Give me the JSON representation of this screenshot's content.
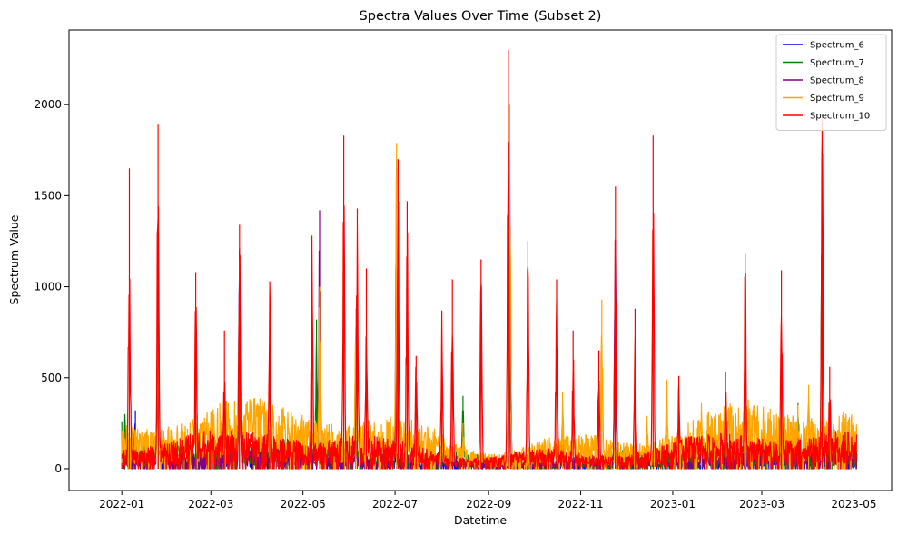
{
  "chart_data": {
    "type": "line",
    "title": "Spectra Values Over Time (Subset 2)",
    "xlabel": "Datetime",
    "ylabel": "Spectrum Value",
    "xlim": [
      "2021-11-27",
      "2023-05-26"
    ],
    "ylim": [
      -120,
      2410
    ],
    "x_ticks": [
      "2022-01",
      "2022-03",
      "2022-05",
      "2022-07",
      "2022-09",
      "2022-11",
      "2023-01",
      "2023-03",
      "2023-05"
    ],
    "y_ticks": [
      0,
      500,
      1000,
      1500,
      2000
    ],
    "grid": false,
    "legend_position": "top-right",
    "series": [
      {
        "name": "Spectrum_6",
        "color": "#0000ff",
        "points": [
          [
            "2022-01-01",
            40
          ],
          [
            "2022-01-10",
            320
          ],
          [
            "2022-01-25",
            1290
          ],
          [
            "2022-02-15",
            90
          ],
          [
            "2022-03-20",
            1200
          ],
          [
            "2022-04-15",
            110
          ],
          [
            "2022-05-12",
            160
          ],
          [
            "2022-06-05",
            230
          ],
          [
            "2022-07-02",
            130
          ],
          [
            "2022-08-15",
            40
          ],
          [
            "2022-09-15",
            1400
          ],
          [
            "2022-10-20",
            70
          ],
          [
            "2022-11-24",
            1260
          ],
          [
            "2022-12-15",
            60
          ],
          [
            "2023-01-15",
            20
          ],
          [
            "2023-03-01",
            30
          ],
          [
            "2023-04-10",
            120
          ],
          [
            "2023-05-01",
            20
          ]
        ]
      },
      {
        "name": "Spectrum_7",
        "color": "#008000",
        "points": [
          [
            "2022-01-01",
            260
          ],
          [
            "2022-01-03",
            300
          ],
          [
            "2022-01-25",
            1260
          ],
          [
            "2022-02-10",
            120
          ],
          [
            "2022-03-20",
            1180
          ],
          [
            "2022-04-15",
            170
          ],
          [
            "2022-05-10",
            820
          ],
          [
            "2022-06-05",
            780
          ],
          [
            "2022-07-02",
            1700
          ],
          [
            "2022-08-15",
            400
          ],
          [
            "2022-09-15",
            1500
          ],
          [
            "2022-10-20",
            180
          ],
          [
            "2022-11-24",
            1220
          ],
          [
            "2022-12-15",
            110
          ],
          [
            "2023-01-20",
            60
          ],
          [
            "2023-03-25",
            360
          ],
          [
            "2023-04-10",
            1900
          ],
          [
            "2023-05-01",
            50
          ]
        ]
      },
      {
        "name": "Spectrum_8",
        "color": "#800080",
        "points": [
          [
            "2022-01-01",
            60
          ],
          [
            "2022-01-25",
            1280
          ],
          [
            "2022-02-15",
            120
          ],
          [
            "2022-03-20",
            1210
          ],
          [
            "2022-04-15",
            130
          ],
          [
            "2022-05-12",
            1420
          ],
          [
            "2022-06-05",
            200
          ],
          [
            "2022-07-02",
            1650
          ],
          [
            "2022-08-15",
            90
          ],
          [
            "2022-09-15",
            1800
          ],
          [
            "2022-10-20",
            110
          ],
          [
            "2022-11-24",
            1260
          ],
          [
            "2022-12-15",
            90
          ],
          [
            "2023-01-20",
            40
          ],
          [
            "2023-03-01",
            50
          ],
          [
            "2023-04-10",
            260
          ],
          [
            "2023-05-01",
            30
          ]
        ]
      },
      {
        "name": "Spectrum_9",
        "color": "#ffa500",
        "points": [
          [
            "2022-01-01",
            130
          ],
          [
            "2022-01-25",
            1330
          ],
          [
            "2022-02-20",
            300
          ],
          [
            "2022-03-20",
            1150
          ],
          [
            "2022-04-15",
            290
          ],
          [
            "2022-05-12",
            1000
          ],
          [
            "2022-06-05",
            880
          ],
          [
            "2022-07-02",
            1790
          ],
          [
            "2022-08-15",
            250
          ],
          [
            "2022-09-15",
            2000
          ],
          [
            "2022-10-20",
            420
          ],
          [
            "2022-11-15",
            930
          ],
          [
            "2022-12-15",
            290
          ],
          [
            "2022-12-28",
            490
          ],
          [
            "2023-01-20",
            360
          ],
          [
            "2023-02-20",
            380
          ],
          [
            "2023-03-25",
            350
          ],
          [
            "2023-04-01",
            460
          ],
          [
            "2023-05-01",
            130
          ]
        ]
      },
      {
        "name": "Spectrum_10",
        "color": "#ff0000",
        "points": [
          [
            "2022-01-01",
            30
          ],
          [
            "2022-01-06",
            1650
          ],
          [
            "2022-01-25",
            1890
          ],
          [
            "2022-02-19",
            1080
          ],
          [
            "2022-03-10",
            760
          ],
          [
            "2022-03-20",
            1340
          ],
          [
            "2022-04-09",
            1030
          ],
          [
            "2022-05-07",
            1280
          ],
          [
            "2022-05-28",
            1830
          ],
          [
            "2022-06-06",
            1430
          ],
          [
            "2022-06-12",
            1100
          ],
          [
            "2022-07-03",
            1700
          ],
          [
            "2022-07-09",
            1470
          ],
          [
            "2022-07-15",
            620
          ],
          [
            "2022-08-01",
            870
          ],
          [
            "2022-08-08",
            1040
          ],
          [
            "2022-08-27",
            1150
          ],
          [
            "2022-09-14",
            2300
          ],
          [
            "2022-09-27",
            1250
          ],
          [
            "2022-10-16",
            1040
          ],
          [
            "2022-10-27",
            760
          ],
          [
            "2022-11-13",
            650
          ],
          [
            "2022-11-24",
            1550
          ],
          [
            "2022-12-07",
            880
          ],
          [
            "2022-12-19",
            1830
          ],
          [
            "2023-01-05",
            510
          ],
          [
            "2023-02-05",
            530
          ],
          [
            "2023-02-18",
            1180
          ],
          [
            "2023-03-14",
            1090
          ],
          [
            "2023-04-10",
            1930
          ],
          [
            "2023-04-15",
            560
          ],
          [
            "2023-05-01",
            30
          ]
        ]
      }
    ]
  }
}
